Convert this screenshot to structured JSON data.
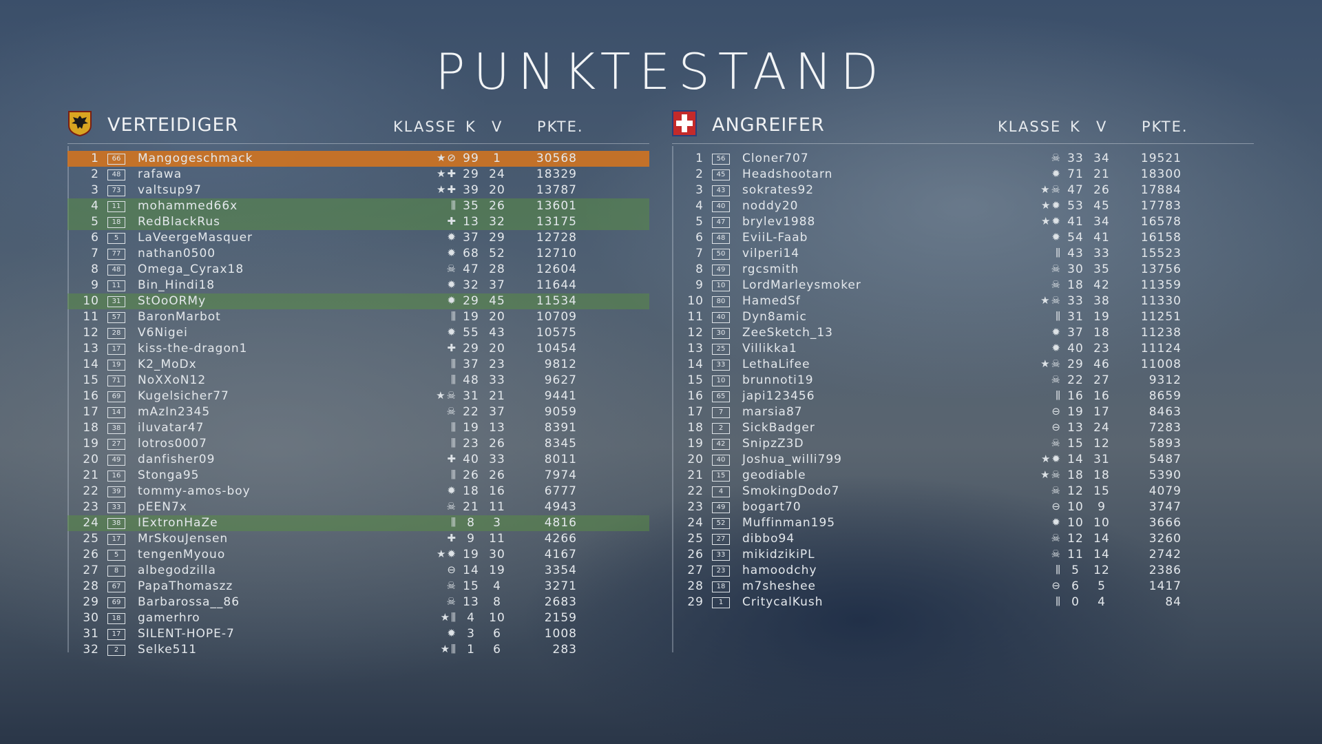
{
  "title": "PUNKTESTAND",
  "columns": {
    "klasse": "KLASSE",
    "k": "K",
    "v": "V",
    "pkte": "PKTE."
  },
  "colors": {
    "highlight_orange": "#cd7323",
    "highlight_green": "#5a8c46"
  },
  "teams": [
    {
      "name": "VERTEIDIGER",
      "emblem": "eagle-crest-icon",
      "rows": [
        {
          "rank": "1",
          "level": "66",
          "name": "Mangogeschmack",
          "cls": "★⊘",
          "k": "99",
          "v": "1",
          "pkte": "30568",
          "hl": "orange"
        },
        {
          "rank": "2",
          "level": "48",
          "name": "rafawa",
          "cls": "★✚",
          "k": "29",
          "v": "24",
          "pkte": "18329"
        },
        {
          "rank": "3",
          "level": "73",
          "name": "valtsup97",
          "cls": "★✚",
          "k": "39",
          "v": "20",
          "pkte": "13787"
        },
        {
          "rank": "4",
          "level": "11",
          "name": "mohammed66x",
          "cls": "⫼",
          "k": "35",
          "v": "26",
          "pkte": "13601",
          "hl": "green"
        },
        {
          "rank": "5",
          "level": "18",
          "name": "RedBlackRus",
          "cls": "✚",
          "k": "13",
          "v": "32",
          "pkte": "13175",
          "hl": "green"
        },
        {
          "rank": "6",
          "level": "5",
          "name": "LaVeergeMasquer",
          "cls": "✹",
          "k": "37",
          "v": "29",
          "pkte": "12728"
        },
        {
          "rank": "7",
          "level": "77",
          "name": "nathan0500",
          "cls": "✹",
          "k": "68",
          "v": "52",
          "pkte": "12710"
        },
        {
          "rank": "8",
          "level": "48",
          "name": "Omega_Cyrax18",
          "cls": "☠",
          "k": "47",
          "v": "28",
          "pkte": "12604"
        },
        {
          "rank": "9",
          "level": "11",
          "name": "Bin_Hindi18",
          "cls": "✹",
          "k": "32",
          "v": "37",
          "pkte": "11644"
        },
        {
          "rank": "10",
          "level": "31",
          "name": "StOoORMy",
          "cls": "✹",
          "k": "29",
          "v": "45",
          "pkte": "11534",
          "hl": "green"
        },
        {
          "rank": "11",
          "level": "57",
          "name": "BaronMarbot",
          "cls": "⫼",
          "k": "19",
          "v": "20",
          "pkte": "10709"
        },
        {
          "rank": "12",
          "level": "28",
          "name": "V6Nigei",
          "cls": "✹",
          "k": "55",
          "v": "43",
          "pkte": "10575"
        },
        {
          "rank": "13",
          "level": "17",
          "name": "kiss-the-dragon1",
          "cls": "✚",
          "k": "29",
          "v": "20",
          "pkte": "10454"
        },
        {
          "rank": "14",
          "level": "19",
          "name": "K2_MoDx",
          "cls": "⫼",
          "k": "37",
          "v": "23",
          "pkte": "9812"
        },
        {
          "rank": "15",
          "level": "71",
          "name": "NoXXoN12",
          "cls": "⫼",
          "k": "48",
          "v": "33",
          "pkte": "9627"
        },
        {
          "rank": "16",
          "level": "69",
          "name": "Kugelsicher77",
          "cls": "★☠",
          "k": "31",
          "v": "21",
          "pkte": "9441"
        },
        {
          "rank": "17",
          "level": "14",
          "name": "mAzIn2345",
          "cls": "☠",
          "k": "22",
          "v": "37",
          "pkte": "9059"
        },
        {
          "rank": "18",
          "level": "38",
          "name": "iluvatar47",
          "cls": "⫼",
          "k": "19",
          "v": "13",
          "pkte": "8391"
        },
        {
          "rank": "19",
          "level": "27",
          "name": "lotros0007",
          "cls": "⫼",
          "k": "23",
          "v": "26",
          "pkte": "8345"
        },
        {
          "rank": "20",
          "level": "49",
          "name": "danfisher09",
          "cls": "✚",
          "k": "40",
          "v": "33",
          "pkte": "8011"
        },
        {
          "rank": "21",
          "level": "16",
          "name": "Stonga95",
          "cls": "⫼",
          "k": "26",
          "v": "26",
          "pkte": "7974"
        },
        {
          "rank": "22",
          "level": "39",
          "name": "tommy-amos-boy",
          "cls": "✹",
          "k": "18",
          "v": "16",
          "pkte": "6777"
        },
        {
          "rank": "23",
          "level": "33",
          "name": "pEEN7x",
          "cls": "☠",
          "k": "21",
          "v": "11",
          "pkte": "4943"
        },
        {
          "rank": "24",
          "level": "38",
          "name": "IExtronHaZe",
          "cls": "⫼",
          "k": "8",
          "v": "3",
          "pkte": "4816",
          "hl": "green"
        },
        {
          "rank": "25",
          "level": "17",
          "name": "MrSkouJensen",
          "cls": "✚",
          "k": "9",
          "v": "11",
          "pkte": "4266"
        },
        {
          "rank": "26",
          "level": "5",
          "name": "tengenMyouo",
          "cls": "★✹",
          "k": "19",
          "v": "30",
          "pkte": "4167"
        },
        {
          "rank": "27",
          "level": "8",
          "name": "albegodzilla",
          "cls": "⊖",
          "k": "14",
          "v": "19",
          "pkte": "3354"
        },
        {
          "rank": "28",
          "level": "67",
          "name": "PapaThomaszz",
          "cls": "☠",
          "k": "15",
          "v": "4",
          "pkte": "3271"
        },
        {
          "rank": "29",
          "level": "69",
          "name": "Barbarossa__86",
          "cls": "☠",
          "k": "13",
          "v": "8",
          "pkte": "2683"
        },
        {
          "rank": "30",
          "level": "18",
          "name": "gamerhro",
          "cls": "★⫼",
          "k": "4",
          "v": "10",
          "pkte": "2159"
        },
        {
          "rank": "31",
          "level": "17",
          "name": "SILENT-HOPE-7",
          "cls": "✹",
          "k": "3",
          "v": "6",
          "pkte": "1008"
        },
        {
          "rank": "32",
          "level": "2",
          "name": "Selke511",
          "cls": "★⫼",
          "k": "1",
          "v": "6",
          "pkte": "283"
        }
      ]
    },
    {
      "name": "ANGREIFER",
      "emblem": "white-cross-shield-icon",
      "rows": [
        {
          "rank": "1",
          "level": "56",
          "name": "Cloner707",
          "cls": "☠",
          "k": "33",
          "v": "34",
          "pkte": "19521"
        },
        {
          "rank": "2",
          "level": "45",
          "name": "Headshootarn",
          "cls": "✹",
          "k": "71",
          "v": "21",
          "pkte": "18300"
        },
        {
          "rank": "3",
          "level": "43",
          "name": "sokrates92",
          "cls": "★☠",
          "k": "47",
          "v": "26",
          "pkte": "17884"
        },
        {
          "rank": "4",
          "level": "40",
          "name": "noddy20",
          "cls": "★✹",
          "k": "53",
          "v": "45",
          "pkte": "17783"
        },
        {
          "rank": "5",
          "level": "47",
          "name": "brylev1988",
          "cls": "★✹",
          "k": "41",
          "v": "34",
          "pkte": "16578"
        },
        {
          "rank": "6",
          "level": "48",
          "name": "EviiL-Faab",
          "cls": "✹",
          "k": "54",
          "v": "41",
          "pkte": "16158"
        },
        {
          "rank": "7",
          "level": "50",
          "name": "vilperi14",
          "cls": "⫼",
          "k": "43",
          "v": "33",
          "pkte": "15523"
        },
        {
          "rank": "8",
          "level": "49",
          "name": "rgcsmith",
          "cls": "☠",
          "k": "30",
          "v": "35",
          "pkte": "13756"
        },
        {
          "rank": "9",
          "level": "10",
          "name": "LordMarleysmoker",
          "cls": "☠",
          "k": "18",
          "v": "42",
          "pkte": "11359"
        },
        {
          "rank": "10",
          "level": "80",
          "name": "HamedSf",
          "cls": "★☠",
          "k": "33",
          "v": "38",
          "pkte": "11330"
        },
        {
          "rank": "11",
          "level": "40",
          "name": "Dyn8amic",
          "cls": "⫼",
          "k": "31",
          "v": "19",
          "pkte": "11251"
        },
        {
          "rank": "12",
          "level": "30",
          "name": "ZeeSketch_13",
          "cls": "✹",
          "k": "37",
          "v": "18",
          "pkte": "11238"
        },
        {
          "rank": "13",
          "level": "25",
          "name": "Villikka1",
          "cls": "✹",
          "k": "40",
          "v": "23",
          "pkte": "11124"
        },
        {
          "rank": "14",
          "level": "33",
          "name": "LethaLifee",
          "cls": "★☠",
          "k": "29",
          "v": "46",
          "pkte": "11008"
        },
        {
          "rank": "15",
          "level": "10",
          "name": "brunnoti19",
          "cls": "☠",
          "k": "22",
          "v": "27",
          "pkte": "9312"
        },
        {
          "rank": "16",
          "level": "65",
          "name": "japi123456",
          "cls": "⫼",
          "k": "16",
          "v": "16",
          "pkte": "8659"
        },
        {
          "rank": "17",
          "level": "7",
          "name": "marsia87",
          "cls": "⊖",
          "k": "19",
          "v": "17",
          "pkte": "8463"
        },
        {
          "rank": "18",
          "level": "2",
          "name": "SickBadger",
          "cls": "⊖",
          "k": "13",
          "v": "24",
          "pkte": "7283"
        },
        {
          "rank": "19",
          "level": "42",
          "name": "SnipzZ3D",
          "cls": "☠",
          "k": "15",
          "v": "12",
          "pkte": "5893"
        },
        {
          "rank": "20",
          "level": "40",
          "name": "Joshua_willi799",
          "cls": "★✹",
          "k": "14",
          "v": "31",
          "pkte": "5487"
        },
        {
          "rank": "21",
          "level": "15",
          "name": "geodiable",
          "cls": "★☠",
          "k": "18",
          "v": "18",
          "pkte": "5390"
        },
        {
          "rank": "22",
          "level": "4",
          "name": "SmokingDodo7",
          "cls": "☠",
          "k": "12",
          "v": "15",
          "pkte": "4079"
        },
        {
          "rank": "23",
          "level": "49",
          "name": "bogart70",
          "cls": "⊖",
          "k": "10",
          "v": "9",
          "pkte": "3747"
        },
        {
          "rank": "24",
          "level": "52",
          "name": "Muffinman195",
          "cls": "✹",
          "k": "10",
          "v": "10",
          "pkte": "3666"
        },
        {
          "rank": "25",
          "level": "27",
          "name": "dibbo94",
          "cls": "☠",
          "k": "12",
          "v": "14",
          "pkte": "3260"
        },
        {
          "rank": "26",
          "level": "33",
          "name": "mikidzikiPL",
          "cls": "☠",
          "k": "11",
          "v": "14",
          "pkte": "2742"
        },
        {
          "rank": "27",
          "level": "23",
          "name": "hamoodchy",
          "cls": "⫼",
          "k": "5",
          "v": "12",
          "pkte": "2386"
        },
        {
          "rank": "28",
          "level": "18",
          "name": "m7sheshee",
          "cls": "⊖",
          "k": "6",
          "v": "5",
          "pkte": "1417"
        },
        {
          "rank": "29",
          "level": "1",
          "name": "CritycalKush",
          "cls": "⫼",
          "k": "0",
          "v": "4",
          "pkte": "84"
        }
      ]
    }
  ]
}
